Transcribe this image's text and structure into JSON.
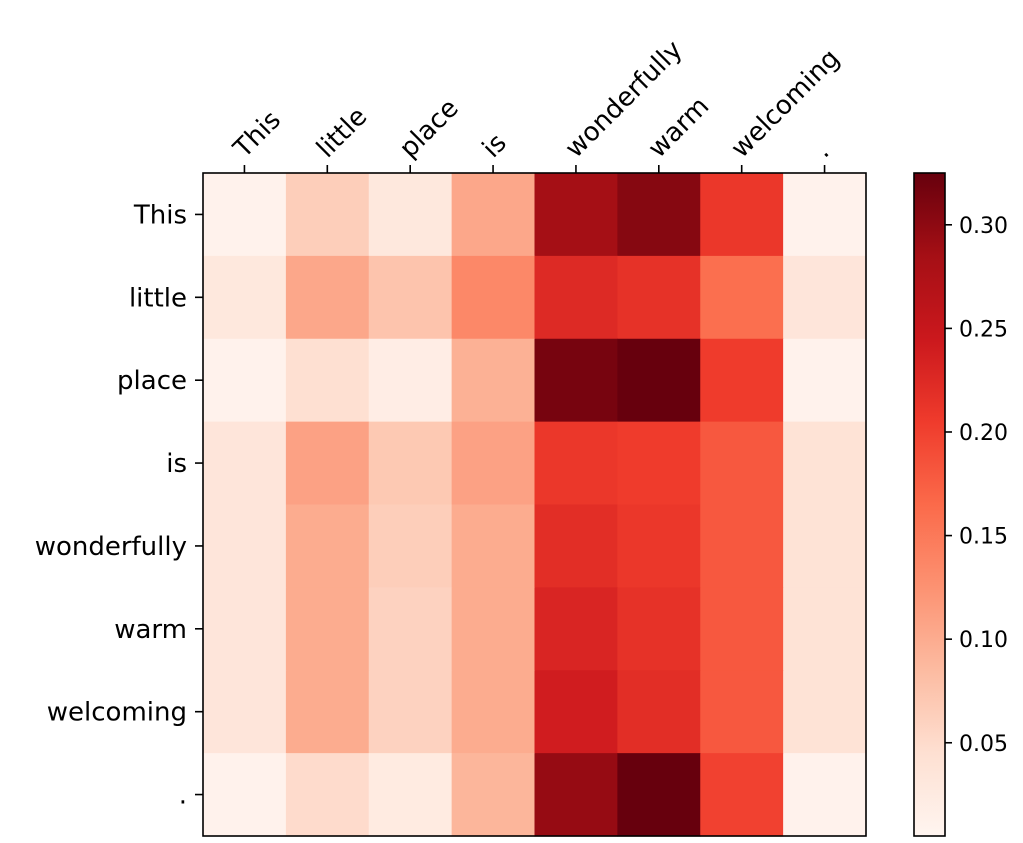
{
  "chart_data": {
    "type": "heatmap",
    "title": "",
    "xlabel": "",
    "ylabel": "",
    "x_tokens": [
      "This",
      "little",
      "place",
      "is",
      "wonderfully",
      "warm",
      "welcoming",
      "."
    ],
    "y_tokens": [
      "This",
      "little",
      "place",
      "is",
      "wonderfully",
      "warm",
      "welcoming",
      "."
    ],
    "x_ticks_position": "top",
    "x_tick_rotation_deg": 45,
    "values": [
      [
        0.01,
        0.065,
        0.03,
        0.105,
        0.285,
        0.305,
        0.21,
        0.01
      ],
      [
        0.03,
        0.105,
        0.075,
        0.135,
        0.225,
        0.215,
        0.16,
        0.035
      ],
      [
        0.01,
        0.045,
        0.02,
        0.095,
        0.315,
        0.325,
        0.205,
        0.01
      ],
      [
        0.035,
        0.11,
        0.07,
        0.11,
        0.21,
        0.205,
        0.18,
        0.04
      ],
      [
        0.035,
        0.1,
        0.065,
        0.1,
        0.22,
        0.21,
        0.18,
        0.04
      ],
      [
        0.035,
        0.1,
        0.06,
        0.1,
        0.23,
        0.215,
        0.18,
        0.04
      ],
      [
        0.035,
        0.1,
        0.06,
        0.1,
        0.24,
        0.22,
        0.18,
        0.04
      ],
      [
        0.01,
        0.05,
        0.025,
        0.09,
        0.295,
        0.325,
        0.2,
        0.01
      ]
    ],
    "colormap": "Reds",
    "colorbar": {
      "vmin": 0.005,
      "vmax": 0.325,
      "ticks": [
        0.05,
        0.1,
        0.15,
        0.2,
        0.25,
        0.3
      ],
      "tick_labels": [
        "0.05",
        "0.10",
        "0.15",
        "0.20",
        "0.25",
        "0.30"
      ],
      "placement": "right"
    },
    "grid": false
  }
}
